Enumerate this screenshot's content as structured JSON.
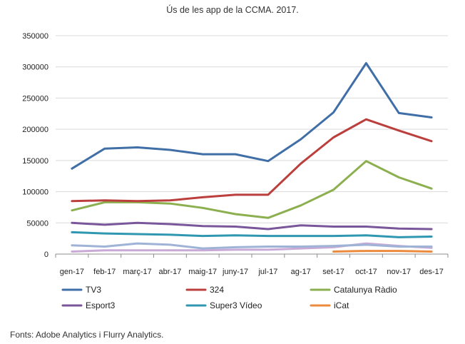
{
  "chart_data": {
    "type": "line",
    "title": "Ús de les app de la CCMA. 2017.",
    "xlabel": "",
    "ylabel": "",
    "ylim": [
      0,
      350000
    ],
    "yticks": [
      "0",
      "50000",
      "100000",
      "150000",
      "200000",
      "250000",
      "300000",
      "350000"
    ],
    "categories": [
      "gen-17",
      "feb-17",
      "març-17",
      "abr-17",
      "maig-17",
      "juny-17",
      "jul-17",
      "ag-17",
      "set-17",
      "oct-17",
      "nov-17",
      "des-17"
    ],
    "grid": true,
    "legend_position": "bottom",
    "series": [
      {
        "name": "TV3",
        "color": "#3f6fa6",
        "values": [
          137000,
          169000,
          171000,
          167000,
          160000,
          160000,
          149000,
          184000,
          227000,
          306000,
          226000,
          219000
        ]
      },
      {
        "name": "324",
        "color": "#bb3f3c",
        "values": [
          85000,
          86000,
          85000,
          86000,
          91000,
          95000,
          95000,
          145000,
          187000,
          216000,
          198000,
          181000
        ]
      },
      {
        "name": "Catalunya Ràdio",
        "color": "#8caf4f",
        "values": [
          70000,
          83000,
          83000,
          81000,
          74000,
          64000,
          58000,
          78000,
          103000,
          149000,
          123000,
          105000
        ]
      },
      {
        "name": "Esport3",
        "color": "#7a569b",
        "values": [
          50000,
          47000,
          50000,
          48000,
          45000,
          44000,
          40000,
          46000,
          44000,
          44000,
          41000,
          40000
        ]
      },
      {
        "name": "Super3 Vídeo",
        "color": "#2f97b0",
        "values": [
          35000,
          33000,
          32000,
          31000,
          29000,
          30000,
          29000,
          29000,
          29000,
          30000,
          27000,
          28000
        ]
      },
      {
        "name": "iCat",
        "color": "#ec8b3d",
        "values": [
          null,
          null,
          null,
          null,
          null,
          null,
          null,
          null,
          4000,
          5000,
          5000,
          4000
        ]
      },
      {
        "name": "",
        "color": "#9fb3d6",
        "values": [
          14000,
          12000,
          17000,
          15000,
          9000,
          11000,
          12000,
          12000,
          13000,
          15000,
          12000,
          12000
        ]
      },
      {
        "name": "",
        "color": "#c9aad6",
        "values": [
          4000,
          6000,
          6000,
          6000,
          6000,
          7000,
          7000,
          9000,
          11000,
          17000,
          13000,
          10000
        ]
      }
    ]
  },
  "source": "Fonts: Adobe Analytics i Flurry Analytics."
}
